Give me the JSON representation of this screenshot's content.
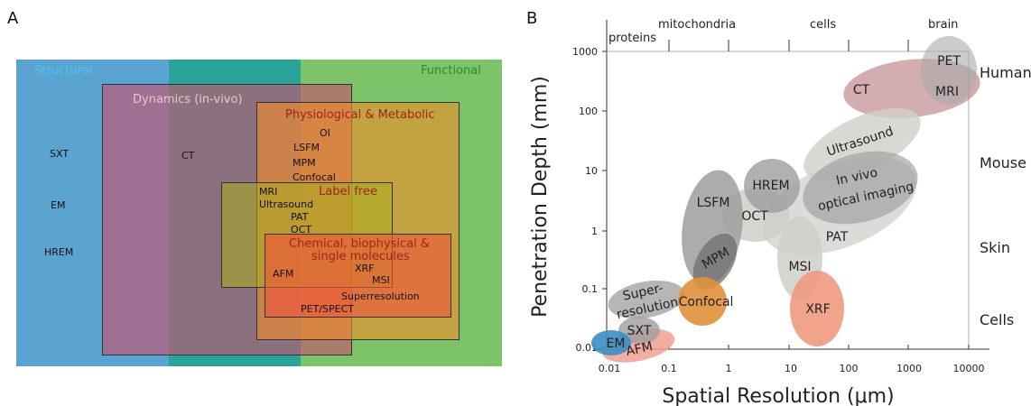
{
  "panelA": {
    "letter": "A",
    "regions": {
      "structural": "Structural",
      "functional": "Functional",
      "dynamics": "Dynamics (in-vivo)",
      "physiological": "Physiological & Metabolic",
      "labelfree": "Label free",
      "chemical_line1": "Chemical, biophysical &",
      "chemical_line2": "single molecules"
    },
    "labels": {
      "sxt": "SXT",
      "em": "EM",
      "hrem": "HREM",
      "ct": "CT",
      "oi": "OI",
      "lsfm": "LSFM",
      "mpm": "MPM",
      "confocal": "Confocal",
      "mri": "MRI",
      "ultrasound": "Ultrasound",
      "pat": "PAT",
      "oct": "OCT",
      "afm": "AFM",
      "xrf": "XRF",
      "msi": "MSI",
      "superresolution": "Superresolution",
      "petspect": "PET/SPECT"
    },
    "colors": {
      "structural": "#5ba3d0",
      "functional": "#7cc36a",
      "overlap": "#2aa39a",
      "dynamics": "#c4546b",
      "physiological": "#f08a2c",
      "labelfree": "#a8b020",
      "chemical": "#ef5a3a"
    }
  },
  "panelB": {
    "letter": "B",
    "x_axis_title": "Spatial Resolution (μm)",
    "y_axis_title": "Penetration Depth (mm)",
    "x_ticks": [
      "0.01",
      "0.1",
      "1",
      "10",
      "100",
      "1000",
      "10000"
    ],
    "y_ticks": [
      "1000",
      "100",
      "10",
      "1",
      "0.1",
      "0.01"
    ],
    "top_scale": [
      "proteins",
      "mitochondria",
      "cells",
      "brain"
    ],
    "right_scale": [
      "Human",
      "Mouse",
      "Skin",
      "Cells"
    ],
    "techniques": {
      "pet": "PET",
      "mri": "MRI",
      "ct": "CT",
      "ultrasound": "Ultrasound",
      "invivo_line1": "In vivo",
      "invivo_line2": "optical imaging",
      "hrem": "HREM",
      "oct": "OCT",
      "lsfm": "LSFM",
      "mpm": "MPM",
      "pat": "PAT",
      "msi": "MSI",
      "super_line1": "Super-",
      "super_line2": "resolution",
      "confocal": "Confocal",
      "xrf": "XRF",
      "sxt": "SXT",
      "em": "EM",
      "afm": "AFM"
    },
    "colors": {
      "grey": "#9e9e9e",
      "light_grey": "#cfcfc9",
      "ct": "#b5767a",
      "confocal": "#e0913a",
      "xrf": "#ee9a80",
      "afm": "#f0a090",
      "em": "#3a8fc4"
    }
  }
}
